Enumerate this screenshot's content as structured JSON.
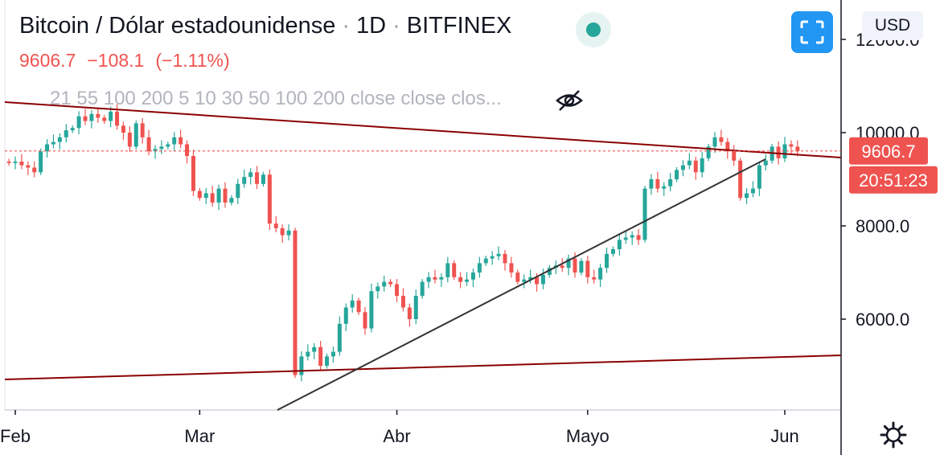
{
  "header": {
    "symbol": "Bitcoin / Dólar estadounidense",
    "interval": "1D",
    "exchange": "BITFINEX",
    "sep": "·",
    "last": "9606.7",
    "change": "−108.1",
    "change_pct": "(−1.11%)",
    "indicators": "21 55 100 200 5 10 30 50 100 200 close close clos..."
  },
  "buttons": {
    "currency": "USD"
  },
  "colors": {
    "up": "#26a69a",
    "down": "#ef5350",
    "trend": "#8b0000",
    "support": "#333333"
  },
  "chart_data": {
    "type": "candlestick",
    "ylim": [
      4000,
      12800
    ],
    "y_ticks": [
      "12000.0",
      "10000.0",
      "8000.0",
      "6000.0"
    ],
    "y_tick_values": [
      12000,
      10000,
      8000,
      6000
    ],
    "x_ticks": [
      "Feb",
      "Mar",
      "Abr",
      "Mayo",
      "Jun"
    ],
    "x_tick_dates": [
      "2020-02-01",
      "2020-03-01",
      "2020-04-01",
      "2020-05-01",
      "2020-06-01"
    ],
    "first_date": "2020-01-31",
    "price_label": "9606.7",
    "countdown_label": "20:51:23",
    "last_price": 9606.7,
    "closes": [
      9350,
      9380,
      9300,
      9250,
      9150,
      9600,
      9750,
      9800,
      9900,
      10050,
      10100,
      10350,
      10250,
      10400,
      10320,
      10250,
      10450,
      10150,
      10000,
      9700,
      10200,
      9900,
      9600,
      9650,
      9700,
      9750,
      9900,
      9750,
      9500,
      8750,
      8600,
      8700,
      8500,
      8800,
      8500,
      8600,
      8900,
      9050,
      9150,
      8900,
      9100,
      8050,
      7950,
      7800,
      7900,
      4800,
      5200,
      5300,
      5400,
      5000,
      5200,
      5300,
      5900,
      6250,
      6400,
      6150,
      5800,
      6600,
      6700,
      6800,
      6750,
      6500,
      6250,
      6000,
      6500,
      6800,
      6900,
      6850,
      6900,
      7200,
      6900,
      6800,
      6850,
      7000,
      7200,
      7300,
      7350,
      7400,
      7200,
      7000,
      6800,
      6850,
      6900,
      6750,
      6950,
      7100,
      7150,
      7100,
      7300,
      7000,
      7250,
      6900,
      6850,
      7100,
      7400,
      7500,
      7700,
      7750,
      7800,
      7700,
      8800,
      9000,
      8800,
      8850,
      9000,
      9200,
      9300,
      9400,
      9150,
      9450,
      9700,
      9900,
      9800,
      9600,
      9400,
      8600,
      8700,
      8800,
      9300,
      9400,
      9700,
      9450,
      9750,
      9700,
      9600
    ]
  }
}
